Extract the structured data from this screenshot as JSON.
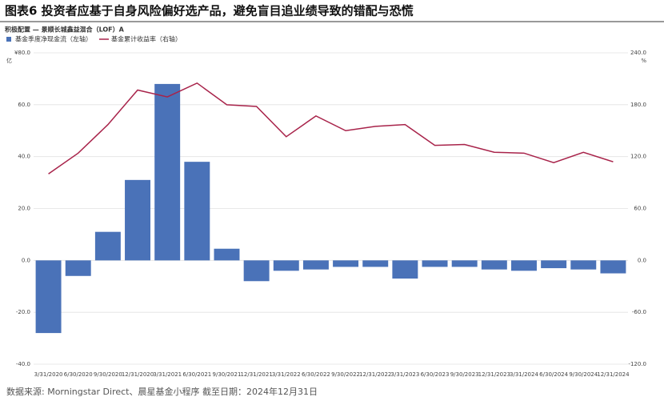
{
  "chart_data": {
    "type": "bar+line",
    "title": "图表6 投资者应基于自身风险偏好选产品，避免盲目追业绩导致的错配与恐慌",
    "subtitle": "积极配置 — 景顺长城鑫益混合（LOF）A",
    "source": "数据来源: Morningstar Direct、晨星基金小程序 截至日期：2024年12月31日",
    "ylabel": "亿",
    "y2label": "%",
    "categories": [
      "3/31/2020",
      "6/30/2020",
      "9/30/2020",
      "12/31/2020",
      "3/31/2021",
      "6/30/2021",
      "9/30/2021",
      "12/31/2021",
      "3/31/2022",
      "6/30/2022",
      "9/30/2022",
      "12/31/2022",
      "3/31/2023",
      "6/30/2023",
      "9/30/2023",
      "12/31/2023",
      "3/31/2024",
      "6/30/2024",
      "9/30/2024",
      "12/31/2024"
    ],
    "series": [
      {
        "name": "基金季度净现金流（左轴）",
        "type": "bar",
        "color": "#4a72b8",
        "values": [
          -28,
          -6,
          11,
          31,
          68,
          38,
          4.5,
          -8,
          -4,
          -3.5,
          -2.5,
          -2.5,
          -7,
          -2.5,
          -2.5,
          -3.5,
          -4,
          -3,
          -3.5,
          -5
        ]
      },
      {
        "name": "基金累计收益率（右轴）",
        "type": "line",
        "axis": "y2",
        "color": "#a8234a",
        "values": [
          100,
          124,
          157,
          197,
          189,
          205,
          180,
          178,
          143,
          167,
          150,
          155,
          157,
          133,
          134,
          125,
          124,
          113,
          125,
          114
        ]
      }
    ],
    "ylim": [
      -40,
      80
    ],
    "yticks": [
      {
        "value": -40,
        "label": "-40.0"
      },
      {
        "value": -20,
        "label": "-20.0"
      },
      {
        "value": 0,
        "label": "0.0"
      },
      {
        "value": 20,
        "label": "20.0"
      },
      {
        "value": 40,
        "label": "40.0"
      },
      {
        "value": 60,
        "label": "60.0"
      },
      {
        "value": 80,
        "label": "¥80.0"
      }
    ],
    "y2lim": [
      -120,
      240
    ],
    "y2ticks": [
      {
        "value": -120,
        "label": "-120.0"
      },
      {
        "value": -60,
        "label": "-60.0"
      },
      {
        "value": 0,
        "label": "0.0"
      },
      {
        "value": 60,
        "label": "60.0"
      },
      {
        "value": 120,
        "label": "120.0"
      },
      {
        "value": 180,
        "label": "180.0"
      },
      {
        "value": 240,
        "label": "240.0"
      }
    ],
    "grid": true
  }
}
